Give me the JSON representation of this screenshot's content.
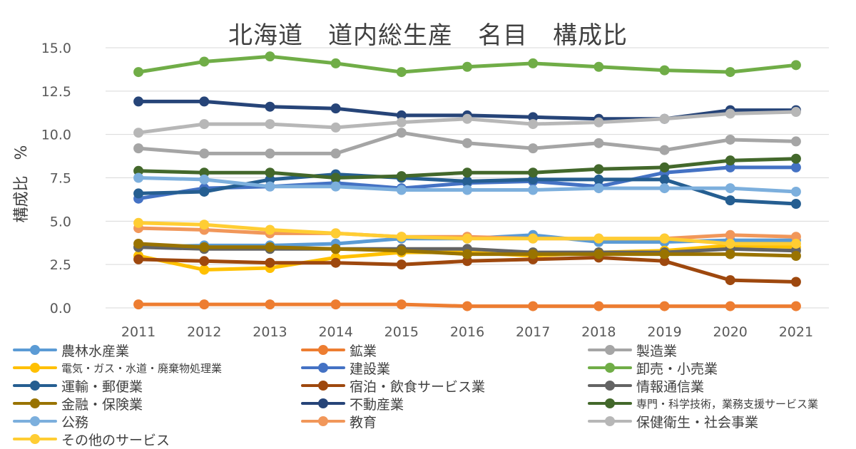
{
  "chart_data": {
    "type": "line",
    "title": "北海道　道内総生産　名目　構成比",
    "xlabel": "",
    "ylabel": "構成比　%",
    "ylim": [
      0,
      15
    ],
    "yticks": [
      "0.0",
      "2.5",
      "5.0",
      "7.5",
      "10.0",
      "12.5",
      "15.0"
    ],
    "categories": [
      "2011",
      "2012",
      "2013",
      "2014",
      "2015",
      "2016",
      "2017",
      "2018",
      "2019",
      "2020",
      "2021"
    ],
    "grid": true,
    "legend_position": "bottom",
    "series": [
      {
        "name": "農林水産業",
        "color": "#5b9bd5",
        "values": [
          3.5,
          3.6,
          3.6,
          3.7,
          4.0,
          4.0,
          4.2,
          3.8,
          3.8,
          3.9,
          3.9
        ]
      },
      {
        "name": "鉱業",
        "color": "#ed7d31",
        "values": [
          0.2,
          0.2,
          0.2,
          0.2,
          0.2,
          0.1,
          0.1,
          0.1,
          0.1,
          0.1,
          0.1
        ]
      },
      {
        "name": "製造業",
        "color": "#a5a5a5",
        "values": [
          9.2,
          8.9,
          8.9,
          8.9,
          10.1,
          9.5,
          9.2,
          9.5,
          9.1,
          9.7,
          9.6
        ]
      },
      {
        "name": "電気・ガス・水道・廃棄物処理業",
        "color": "#ffc000",
        "values": [
          3.0,
          2.2,
          2.3,
          2.9,
          3.2,
          3.2,
          3.0,
          3.2,
          3.3,
          3.6,
          3.5
        ]
      },
      {
        "name": "建設業",
        "color": "#4472c4",
        "values": [
          6.3,
          6.9,
          7.0,
          7.2,
          6.9,
          7.2,
          7.3,
          7.0,
          7.8,
          8.1,
          8.1
        ]
      },
      {
        "name": "卸売・小売業",
        "color": "#70ad47",
        "values": [
          13.6,
          14.2,
          14.5,
          14.1,
          13.6,
          13.9,
          14.1,
          13.9,
          13.7,
          13.6,
          14.0
        ]
      },
      {
        "name": "運輸・郵便業",
        "color": "#255e91",
        "values": [
          6.6,
          6.7,
          7.4,
          7.7,
          7.5,
          7.3,
          7.4,
          7.4,
          7.4,
          6.2,
          6.0
        ]
      },
      {
        "name": "宿泊・飲食サービス業",
        "color": "#9e480e",
        "values": [
          2.8,
          2.7,
          2.6,
          2.6,
          2.5,
          2.7,
          2.8,
          2.9,
          2.7,
          1.6,
          1.5
        ]
      },
      {
        "name": "情報通信業",
        "color": "#636363",
        "values": [
          3.5,
          3.4,
          3.4,
          3.4,
          3.4,
          3.4,
          3.2,
          3.2,
          3.2,
          3.4,
          3.3
        ]
      },
      {
        "name": "金融・保険業",
        "color": "#997300",
        "values": [
          3.7,
          3.5,
          3.5,
          3.4,
          3.3,
          3.1,
          3.1,
          3.1,
          3.1,
          3.1,
          3.0
        ]
      },
      {
        "name": "不動産業",
        "color": "#264478",
        "values": [
          11.9,
          11.9,
          11.6,
          11.5,
          11.1,
          11.1,
          11.0,
          10.9,
          10.9,
          11.4,
          11.4
        ]
      },
      {
        "name": "専門・科学技術，業務支援サービス業",
        "color": "#43682b",
        "values": [
          7.9,
          7.8,
          7.8,
          7.5,
          7.6,
          7.8,
          7.8,
          8.0,
          8.1,
          8.5,
          8.6
        ]
      },
      {
        "name": "公務",
        "color": "#7cafdd",
        "values": [
          7.5,
          7.4,
          7.0,
          7.0,
          6.8,
          6.8,
          6.8,
          6.9,
          6.9,
          6.9,
          6.7
        ]
      },
      {
        "name": "教育",
        "color": "#f1975a",
        "values": [
          4.6,
          4.5,
          4.3,
          4.3,
          4.1,
          4.1,
          4.0,
          4.0,
          4.0,
          4.2,
          4.1
        ]
      },
      {
        "name": "保健衛生・社会事業",
        "color": "#b7b7b7",
        "values": [
          10.1,
          10.6,
          10.6,
          10.4,
          10.7,
          10.9,
          10.6,
          10.7,
          10.9,
          11.2,
          11.3
        ]
      },
      {
        "name": "その他のサービス",
        "color": "#ffcd33",
        "values": [
          4.9,
          4.8,
          4.5,
          4.3,
          4.1,
          4.0,
          4.0,
          4.0,
          4.0,
          3.7,
          3.7
        ]
      }
    ]
  }
}
